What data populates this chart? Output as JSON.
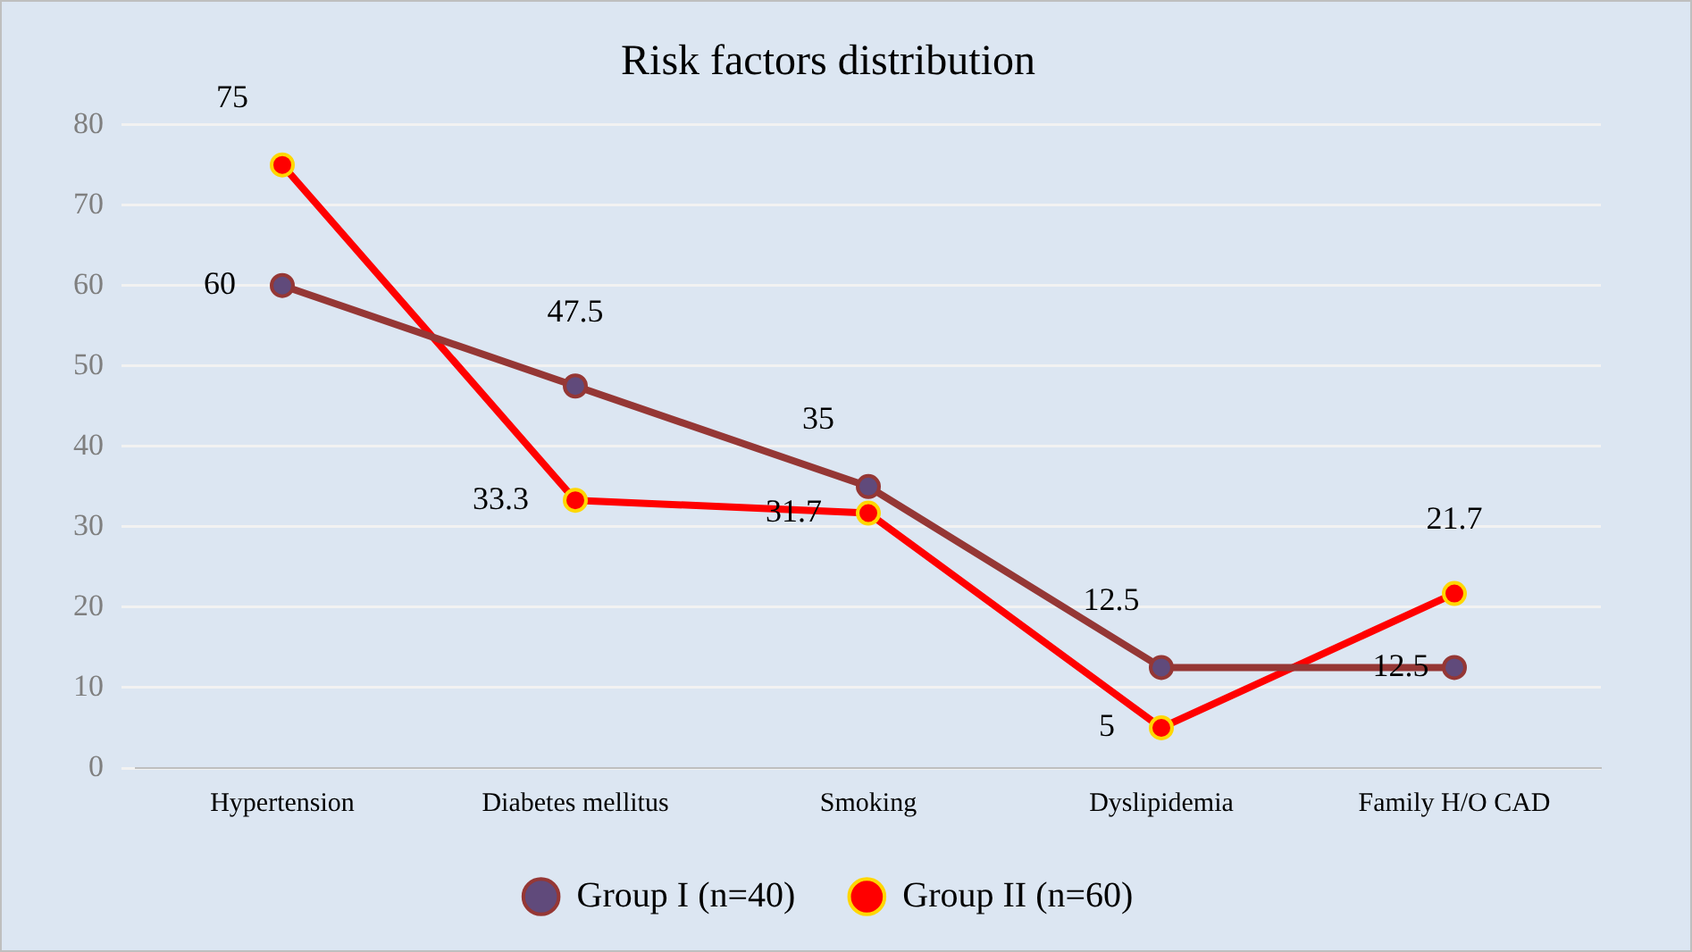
{
  "chart_data": {
    "type": "line",
    "title": "Risk factors distribution",
    "categories": [
      "Hypertension",
      "Diabetes mellitus",
      "Smoking",
      "Dyslipidemia",
      "Family H/O CAD"
    ],
    "series": [
      {
        "name": "Group I (n=40)",
        "color": "#953735",
        "values": [
          60,
          47.5,
          35,
          12.5,
          12.5
        ]
      },
      {
        "name": "Group II (n=60)",
        "color": "#ff0000",
        "values": [
          75,
          33.3,
          31.7,
          5,
          21.7
        ]
      }
    ],
    "ylim": [
      0,
      80
    ],
    "yticks": [
      0,
      10,
      20,
      30,
      40,
      50,
      60,
      70,
      80
    ],
    "grid": "y",
    "legend": "bottom",
    "marker": "circle",
    "line_style": "solid",
    "data_labels": true
  }
}
